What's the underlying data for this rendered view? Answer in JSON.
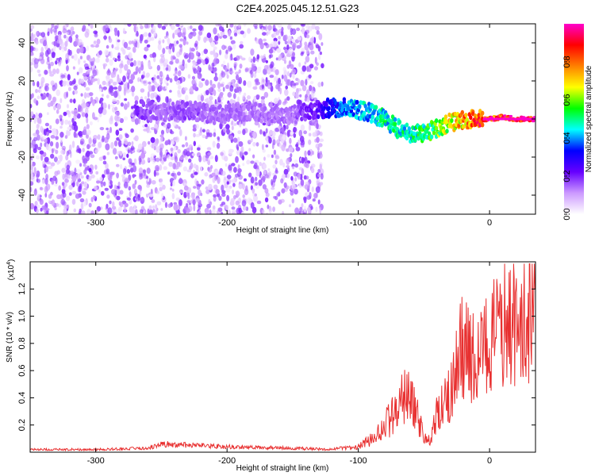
{
  "title": "C2E4.2025.045.12.51.G23",
  "chart_data": [
    {
      "type": "heatmap",
      "xlabel": "Height of straight line (km)",
      "ylabel": "Frequency (Hz)",
      "xlim": [
        -350,
        35
      ],
      "ylim": [
        -50,
        50
      ],
      "xticks": [
        -300,
        -200,
        -100,
        0
      ],
      "xtick_labels": [
        "-300",
        "-200",
        "-100",
        "0"
      ],
      "yticks": [
        -40,
        -20,
        0,
        20,
        40
      ],
      "ytick_labels": [
        "-40",
        "-20",
        "0",
        "20",
        "40"
      ],
      "colorbar": {
        "label": "Normalized spectral amplitude",
        "range": [
          0,
          1
        ],
        "ticks": [
          0,
          0.2,
          0.4,
          0.6,
          0.8
        ],
        "tick_labels": [
          "0.0",
          "0.2",
          "0.4",
          "0.6",
          "0.8"
        ],
        "colors": [
          "#ffffff",
          "#cc99ff",
          "#6600ff",
          "#0000ff",
          "#00ffff",
          "#00ff00",
          "#ffff00",
          "#ff8000",
          "#ff0000",
          "#ff00cc"
        ]
      },
      "noise_region_x": [
        -350,
        -127
      ],
      "ridge": {
        "x": [
          -270,
          -250,
          -230,
          -210,
          -190,
          -170,
          -150,
          -130,
          -120,
          -110,
          -100,
          -90,
          -80,
          -70,
          -60,
          -50,
          -40,
          -30,
          -20,
          -10,
          0,
          10,
          20,
          35
        ],
        "y": [
          6,
          3,
          5,
          2,
          4,
          3,
          2,
          5,
          6,
          6,
          5,
          3,
          0,
          -5,
          -8,
          -7,
          -5,
          -2,
          0,
          0,
          0,
          1,
          0,
          0
        ],
        "amplitude": [
          0.2,
          0.15,
          0.18,
          0.15,
          0.15,
          0.15,
          0.15,
          0.25,
          0.35,
          0.4,
          0.45,
          0.45,
          0.5,
          0.5,
          0.5,
          0.55,
          0.6,
          0.7,
          0.8,
          0.9,
          0.95,
          0.97,
          0.98,
          1.0
        ]
      }
    },
    {
      "type": "line",
      "xlabel": "Height of straight line (km)",
      "ylabel": "SNR (10 * v/v)",
      "scale_note": "(x10",
      "scale_exp": "4",
      "scale_close": ")",
      "xlim": [
        -350,
        35
      ],
      "ylim": [
        0,
        1.4
      ],
      "xticks": [
        -300,
        -200,
        -100,
        0
      ],
      "xtick_labels": [
        "-300",
        "-200",
        "-100",
        "0"
      ],
      "yticks": [
        0.2,
        0.4,
        0.6,
        0.8,
        1.0,
        1.2
      ],
      "ytick_labels": [
        "0.2",
        "0.4",
        "0.6",
        "0.8",
        "1.0",
        "1.2"
      ],
      "color": "#e83030",
      "series": [
        {
          "x": [
            -350,
            -300,
            -260,
            -250,
            -200,
            -150,
            -120,
            -100,
            -90,
            -80,
            -70,
            -62,
            -58,
            -50,
            -45,
            -40,
            -30,
            -25,
            -20,
            -10,
            0,
            10,
            20,
            30,
            35
          ],
          "y": [
            0.02,
            0.02,
            0.03,
            0.06,
            0.04,
            0.03,
            0.02,
            0.05,
            0.12,
            0.25,
            0.4,
            0.6,
            0.45,
            0.15,
            0.1,
            0.35,
            0.55,
            0.9,
            1.0,
            0.85,
            1.05,
            1.2,
            1.25,
            1.3,
            1.3
          ]
        }
      ]
    }
  ]
}
